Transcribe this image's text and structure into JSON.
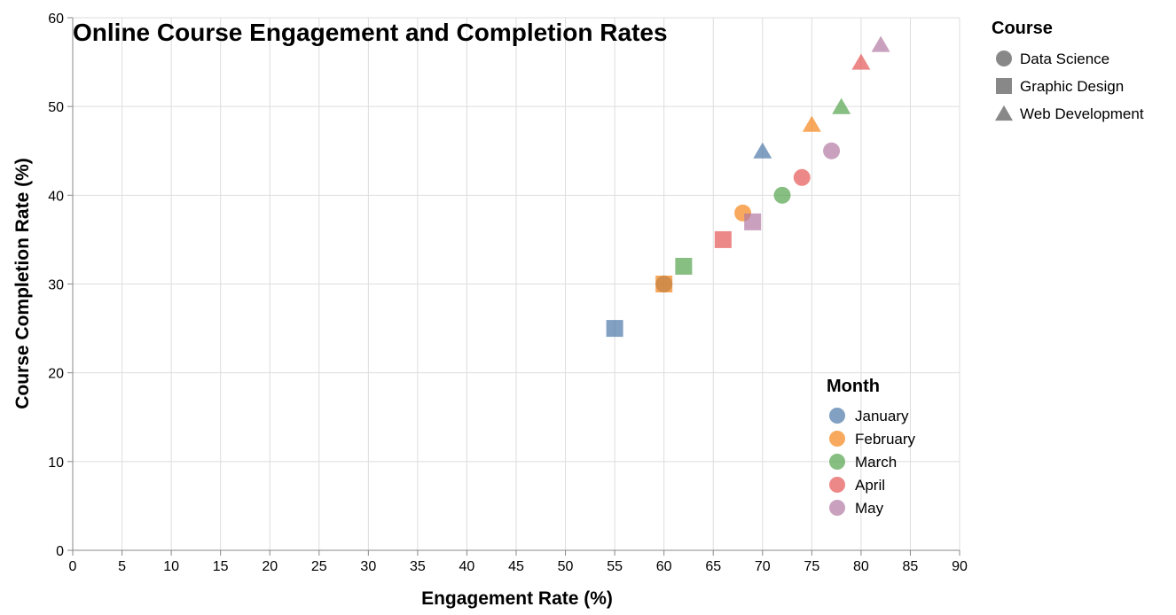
{
  "chart_data": {
    "type": "scatter",
    "title": "Online Course Engagement and Completion Rates",
    "xlabel": "Engagement Rate (%)",
    "ylabel": "Course Completion Rate (%)",
    "xlim": [
      0,
      90
    ],
    "ylim": [
      0,
      60
    ],
    "xticks": [
      0,
      5,
      10,
      15,
      20,
      25,
      30,
      35,
      40,
      45,
      50,
      55,
      60,
      65,
      70,
      75,
      80,
      85,
      90
    ],
    "yticks": [
      0,
      10,
      20,
      30,
      40,
      50,
      60
    ],
    "grid": true,
    "legends": {
      "course": {
        "title": "Course",
        "placement": "top-right",
        "items": [
          {
            "label": "Data Science",
            "shape": "circle"
          },
          {
            "label": "Graphic Design",
            "shape": "square"
          },
          {
            "label": "Web Development",
            "shape": "triangle"
          }
        ]
      },
      "month": {
        "title": "Month",
        "placement": "bottom-right",
        "items": [
          {
            "label": "January",
            "color": "#4c78a8"
          },
          {
            "label": "February",
            "color": "#f58518"
          },
          {
            "label": "March",
            "color": "#54a24b"
          },
          {
            "label": "April",
            "color": "#e45756"
          },
          {
            "label": "May",
            "color": "#b279a2"
          }
        ]
      }
    },
    "colors": {
      "January": "#4c78a8",
      "February": "#f58518",
      "March": "#54a24b",
      "April": "#e45756",
      "May": "#b279a2",
      "shape_legend": "#888888"
    },
    "points": [
      {
        "course": "Data Science",
        "month": "January",
        "x": 60,
        "y": 30
      },
      {
        "course": "Data Science",
        "month": "February",
        "x": 68,
        "y": 38
      },
      {
        "course": "Data Science",
        "month": "March",
        "x": 72,
        "y": 40
      },
      {
        "course": "Data Science",
        "month": "April",
        "x": 74,
        "y": 42
      },
      {
        "course": "Data Science",
        "month": "May",
        "x": 77,
        "y": 45
      },
      {
        "course": "Graphic Design",
        "month": "January",
        "x": 55,
        "y": 25
      },
      {
        "course": "Graphic Design",
        "month": "February",
        "x": 60,
        "y": 30
      },
      {
        "course": "Graphic Design",
        "month": "March",
        "x": 62,
        "y": 32
      },
      {
        "course": "Graphic Design",
        "month": "April",
        "x": 66,
        "y": 35
      },
      {
        "course": "Graphic Design",
        "month": "May",
        "x": 69,
        "y": 37
      },
      {
        "course": "Web Development",
        "month": "January",
        "x": 70,
        "y": 45
      },
      {
        "course": "Web Development",
        "month": "February",
        "x": 75,
        "y": 48
      },
      {
        "course": "Web Development",
        "month": "March",
        "x": 78,
        "y": 50
      },
      {
        "course": "Web Development",
        "month": "April",
        "x": 80,
        "y": 55
      },
      {
        "course": "Web Development",
        "month": "May",
        "x": 82,
        "y": 57
      }
    ]
  }
}
